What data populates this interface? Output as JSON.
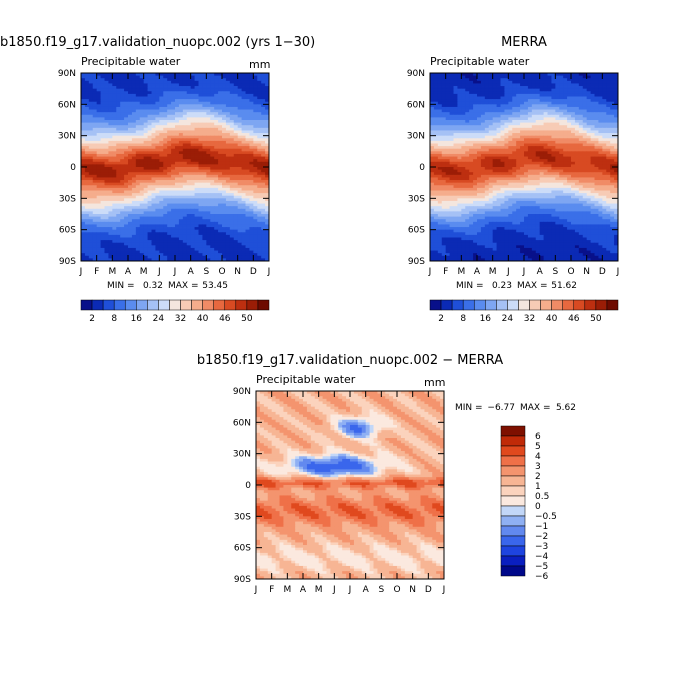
{
  "chart_data": [
    {
      "type": "heatmap",
      "panel": "model",
      "title": "b1850.f19_g17.validation_nuopc.002 (yrs 1−30)",
      "subtitle": "Precipitable water",
      "units": "mm",
      "x_ticks": [
        "J",
        "F",
        "M",
        "A",
        "M",
        "J",
        "J",
        "A",
        "S",
        "O",
        "N",
        "D",
        "J"
      ],
      "y_ticks": [
        "90N",
        "60N",
        "30N",
        "0",
        "30S",
        "60S",
        "90S"
      ],
      "min_label": "MIN =",
      "min_value": "0.32",
      "max_label": "MAX =",
      "max_value": "53.45",
      "colorbar_labels": [
        "2",
        "8",
        "16",
        "24",
        "32",
        "40",
        "46",
        "50"
      ],
      "min": 0.32,
      "max": 53.45
    },
    {
      "type": "heatmap",
      "panel": "obs",
      "title": "MERRA",
      "subtitle": "Precipitable water",
      "units": "",
      "x_ticks": [
        "J",
        "F",
        "M",
        "A",
        "M",
        "J",
        "J",
        "A",
        "S",
        "O",
        "N",
        "D",
        "J"
      ],
      "y_ticks": [
        "90N",
        "60N",
        "30N",
        "0",
        "30S",
        "60S",
        "90S"
      ],
      "min_label": "MIN =",
      "min_value": "0.23",
      "max_label": "MAX =",
      "max_value": "51.62",
      "colorbar_labels": [
        "2",
        "8",
        "16",
        "24",
        "32",
        "40",
        "46",
        "50"
      ],
      "min": 0.23,
      "max": 51.62
    },
    {
      "type": "heatmap",
      "panel": "diff",
      "title": "b1850.f19_g17.validation_nuopc.002 − MERRA",
      "subtitle": "Precipitable water",
      "units": "mm",
      "x_ticks": [
        "J",
        "F",
        "M",
        "A",
        "M",
        "J",
        "J",
        "A",
        "S",
        "O",
        "N",
        "D",
        "J"
      ],
      "y_ticks": [
        "90N",
        "60N",
        "30N",
        "0",
        "30S",
        "60S",
        "90S"
      ],
      "min_label": "MIN =",
      "min_value": "−6.77",
      "max_label": "MAX =",
      "max_value": "5.62",
      "colorbar_labels": [
        "6",
        "5",
        "4",
        "3",
        "2",
        "1",
        "0.5",
        "0",
        "−0.5",
        "−1",
        "−2",
        "−3",
        "−4",
        "−5",
        "−6"
      ],
      "min": -6.77,
      "max": 5.62
    }
  ],
  "colors": {
    "abs_scale": [
      "#08108a",
      "#0b2ab5",
      "#1f4fd8",
      "#3a6fe8",
      "#5a8cef",
      "#7ea6f2",
      "#a5c1f5",
      "#ccdcf8",
      "#f4e6de",
      "#f7cbb5",
      "#f5ad8c",
      "#f08b66",
      "#e7683f",
      "#d84a22",
      "#bd2f10",
      "#9b1d06",
      "#6e0b00"
    ],
    "diff_scale": [
      "#00088a",
      "#0a1fc0",
      "#1e44e0",
      "#3a66ec",
      "#6289ef",
      "#8fb0f3",
      "#c2d7f8",
      "#fbe9df",
      "#fbd3bd",
      "#f7b594",
      "#f4946e",
      "#ef7048",
      "#e0491e",
      "#c02a08",
      "#7e1000"
    ]
  }
}
